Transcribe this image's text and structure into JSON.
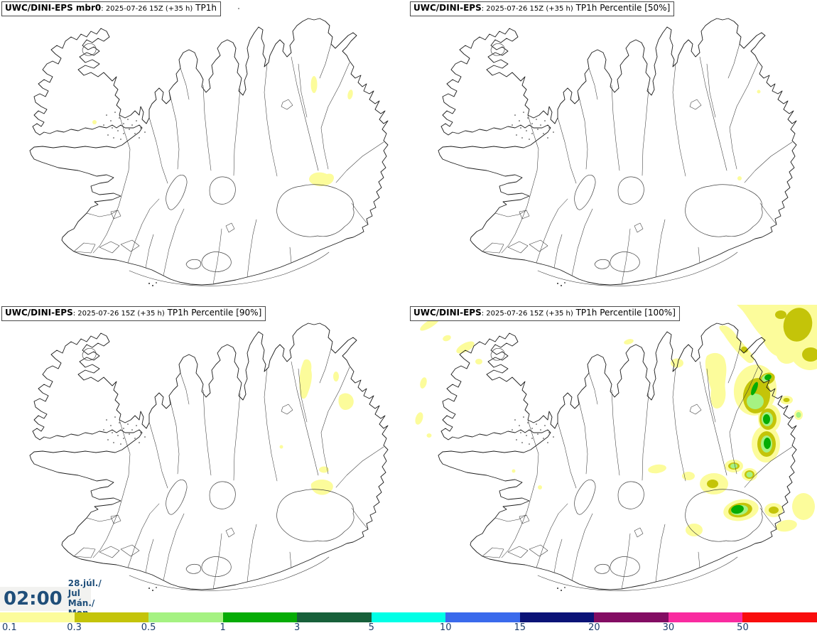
{
  "panels": [
    {
      "id": "member-0",
      "model": "UWC/DINI-EPS mbr0",
      "run": ": 2025-07-26 15Z (+35 h)",
      "product": "TP1h"
    },
    {
      "id": "percentile-50",
      "model": "UWC/DINI-EPS",
      "run": ": 2025-07-26 15Z (+35 h)",
      "product": "TP1h Percentile [50%]"
    },
    {
      "id": "percentile-90",
      "model": "UWC/DINI-EPS",
      "run": ": 2025-07-26 15Z (+35 h)",
      "product": "TP1h Percentile [90%]"
    },
    {
      "id": "percentile-100",
      "model": "UWC/DINI-EPS",
      "run": ": 2025-07-26 15Z (+35 h)",
      "product": "TP1h Percentile [100%]"
    }
  ],
  "footer": {
    "time": "02:00",
    "date_line1": "28.júl./ Jul",
    "date_line2": "Mán./ Mon",
    "text_color": "#1F4E79",
    "box_bg": "#F2F2F0"
  },
  "colorbar": {
    "tick_labels": [
      "0.1",
      "0.3",
      "0.5",
      "1",
      "3",
      "5",
      "10",
      "15",
      "20",
      "30",
      "50"
    ],
    "colors": [
      "#FCFC9B",
      "#C4C409",
      "#A5F282",
      "#05AC05",
      "#17603A",
      "#00FFE6",
      "#3A6AEC",
      "#0B1377",
      "#830D63",
      "#F92BA0",
      "#F90D0D"
    ],
    "label_color": "#1B3C6B"
  }
}
